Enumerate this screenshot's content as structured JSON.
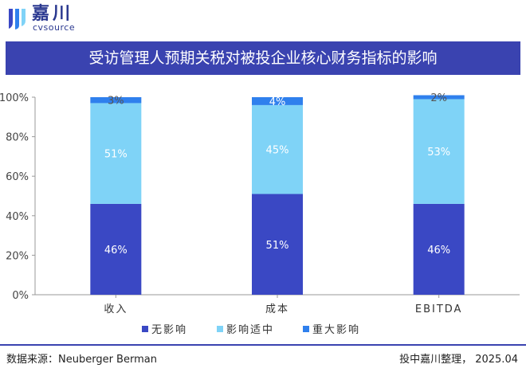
{
  "brand": {
    "name_cn": "嘉川",
    "name_en": "cvsource"
  },
  "chart_data": {
    "type": "bar",
    "stacked": true,
    "title": "受访管理人预期关税对被投企业核心财务指标的影响",
    "categories": [
      "收入",
      "成本",
      "EBITDA"
    ],
    "series": [
      {
        "name": "无影响",
        "color": "#3a48c4",
        "values": [
          46,
          51,
          46
        ],
        "labels": [
          "46%",
          "51%",
          "46%"
        ]
      },
      {
        "name": "影响适中",
        "color": "#7fd3f7",
        "values": [
          51,
          45,
          53
        ],
        "labels": [
          "51%",
          "45%",
          "53%"
        ]
      },
      {
        "name": "重大影响",
        "color": "#2f80ed",
        "values": [
          3,
          4,
          2
        ],
        "labels": [
          "3%",
          "4%",
          "2%"
        ]
      }
    ],
    "ylim": [
      0,
      100
    ],
    "yticks": [
      "0%",
      "20%",
      "40%",
      "60%",
      "80%",
      "100%"
    ],
    "legend_position": "bottom",
    "grid": false
  },
  "footer": {
    "source": "数据来源：Neuberger Berman",
    "credit": "投中嘉川整理， 2025.04"
  }
}
